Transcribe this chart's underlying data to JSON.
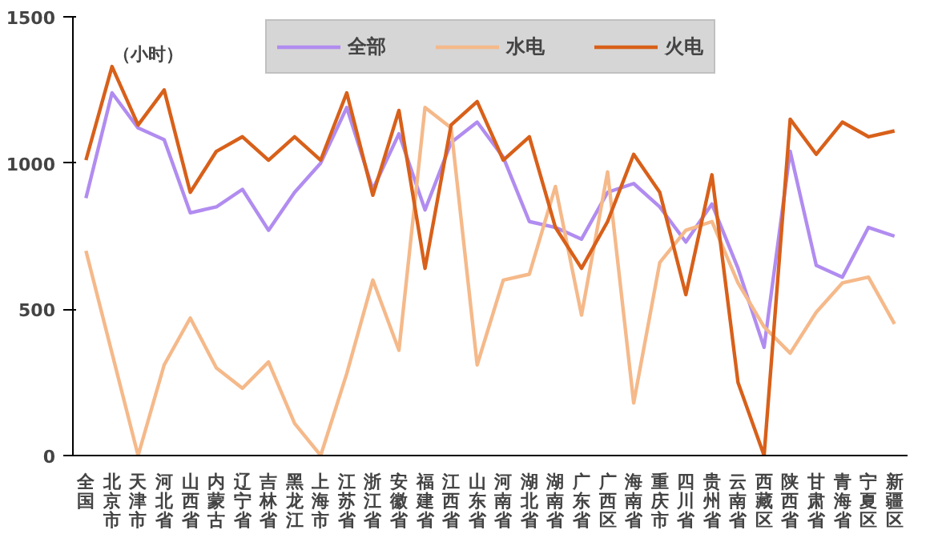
{
  "chart_data": {
    "type": "line",
    "categories": [
      "全国",
      "北京市",
      "天津市",
      "河北省",
      "山西省",
      "内蒙古",
      "辽宁省",
      "吉林省",
      "黑龙江",
      "上海市",
      "江苏省",
      "浙江省",
      "安徽省",
      "福建省",
      "江西省",
      "山东省",
      "河南省",
      "湖北省",
      "湖南省",
      "广东省",
      "广西区",
      "海南省",
      "重庆市",
      "四川省",
      "贵州省",
      "云南省",
      "西藏区",
      "陕西省",
      "甘肃省",
      "青海省",
      "宁夏区",
      "新疆区"
    ],
    "series": [
      {
        "name": "全部",
        "color": "#b18cf0",
        "values": [
          880,
          1240,
          1120,
          1080,
          830,
          850,
          910,
          770,
          900,
          1000,
          1190,
          910,
          1100,
          840,
          1070,
          1140,
          1020,
          800,
          780,
          740,
          900,
          930,
          850,
          730,
          860,
          640,
          370,
          1040,
          650,
          610,
          780,
          750
        ]
      },
      {
        "name": "水电",
        "color": "#f5b98a",
        "values": [
          700,
          350,
          0,
          310,
          470,
          300,
          230,
          320,
          110,
          0,
          280,
          600,
          360,
          1190,
          1120,
          310,
          600,
          620,
          920,
          480,
          970,
          180,
          660,
          770,
          800,
          590,
          440,
          350,
          490,
          590,
          610,
          450
        ]
      },
      {
        "name": "火电",
        "color": "#d8601a",
        "values": [
          1010,
          1330,
          1130,
          1250,
          900,
          1040,
          1090,
          1010,
          1090,
          1010,
          1240,
          890,
          1180,
          640,
          1130,
          1210,
          1010,
          1090,
          780,
          640,
          800,
          1030,
          900,
          550,
          960,
          250,
          0,
          1150,
          1030,
          1140,
          1090,
          1110
        ]
      }
    ],
    "ylim": [
      0,
      1500
    ],
    "yticks": [
      0,
      500,
      1000,
      1500
    ],
    "annotations": [
      "（小时）"
    ],
    "grid": false,
    "legend": "top",
    "marker": "none",
    "line_style": "solid"
  }
}
